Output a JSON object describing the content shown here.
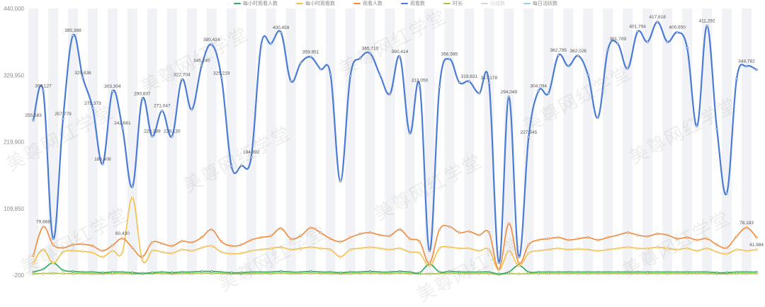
{
  "watermark_text": "美尊网红学堂",
  "legend": [
    {
      "name": "每小时观看人数",
      "color": "#2eaa5a",
      "muted": false
    },
    {
      "name": "每小时观看数",
      "color": "#f4c04a",
      "muted": false
    },
    {
      "name": "观看人数",
      "color": "#f08a3a",
      "muted": false
    },
    {
      "name": "观看数",
      "color": "#4a7bd6",
      "muted": false
    },
    {
      "name": "时长",
      "color": "#b0bf45",
      "muted": false
    },
    {
      "name": "分成数",
      "color": "#d7d7d7",
      "muted": true
    },
    {
      "name": "每日活跃数",
      "color": "#8fd0ef",
      "muted": false
    }
  ],
  "chart_data": {
    "type": "line",
    "title": "",
    "xlabel": "",
    "ylabel": "",
    "ylim": [
      -200,
      440000
    ],
    "y_ticks": [
      {
        "value": 440000,
        "label": "440,000"
      },
      {
        "value": 329950,
        "label": "329,950"
      },
      {
        "value": 219900,
        "label": "219,900"
      },
      {
        "value": 109850,
        "label": "109,850"
      },
      {
        "value": -200,
        "label": "-200"
      }
    ],
    "grid": "alternating vertical bands",
    "legend_position": "top-center",
    "series": [
      {
        "name": "观看数",
        "color": "#4a7bd6",
        "values": [
          255583,
          304127,
          60000,
          257779,
          395388,
          325838,
          275373,
          183408,
          303304,
          242661,
          145579,
          290837,
          229189,
          271047,
          229120,
          322704,
          273300,
          346240,
          380424,
          325219,
          180000,
          180519,
          194892,
          380000,
          382000,
          400459,
          320245,
          350000,
          359951,
          340000,
          330910,
          155000,
          328684,
          358000,
          365710,
          330000,
          299000,
          360414,
          234000,
          313050,
          40000,
          310570,
          356595,
          318000,
          319631,
          300000,
          317178,
          20000,
          294049,
          30000,
          227545,
          304094,
          300000,
          362795,
          345000,
          362026,
          330000,
          260000,
          372000,
          381709,
          341000,
          401794,
          385000,
          417818,
          385000,
          400650,
          375000,
          246000,
          411292,
          241000,
          135000,
          324000,
          344782,
          339000
        ]
      },
      {
        "name": "观看人数",
        "color": "#f08a3a",
        "values": [
          32000,
          79668,
          50000,
          45000,
          50000,
          51000,
          48000,
          40000,
          49000,
          60430,
          45000,
          30000,
          54000,
          52000,
          48000,
          56000,
          54000,
          62000,
          75000,
          55000,
          48000,
          50000,
          58000,
          62000,
          65000,
          77000,
          60000,
          65000,
          78000,
          70000,
          60000,
          55000,
          62000,
          68000,
          70000,
          66000,
          65000,
          75000,
          60000,
          55000,
          20000,
          75000,
          80000,
          70000,
          72000,
          66000,
          70000,
          10000,
          85000,
          20000,
          50000,
          58000,
          60000,
          62000,
          58000,
          60000,
          62000,
          58000,
          62000,
          66000,
          70000,
          66000,
          64000,
          68000,
          66000,
          60000,
          62000,
          58000,
          60000,
          50000,
          45000,
          64000,
          78183,
          62000
        ]
      },
      {
        "name": "每小时观看数",
        "color": "#f4c04a",
        "values": [
          20000,
          42000,
          20000,
          38000,
          40000,
          39000,
          37000,
          30000,
          40000,
          38000,
          128000,
          25000,
          40000,
          38000,
          36000,
          42000,
          40000,
          45000,
          48000,
          38000,
          35000,
          36000,
          40000,
          42000,
          44000,
          46000,
          42000,
          44000,
          46000,
          44000,
          42000,
          30000,
          42000,
          44000,
          46000,
          44000,
          42000,
          44000,
          38000,
          36000,
          15000,
          44000,
          46000,
          44000,
          44000,
          40000,
          42000,
          8000,
          40000,
          15000,
          36000,
          40000,
          42000,
          44000,
          42000,
          43000,
          42000,
          40000,
          42000,
          44000,
          46000,
          44000,
          44000,
          46000,
          44000,
          42000,
          44000,
          40000,
          44000,
          38000,
          35000,
          42000,
          40000,
          41984
        ]
      },
      {
        "name": "每小时观看人数",
        "color": "#2eaa5a",
        "values": [
          5000,
          10000,
          20000,
          8000,
          6000,
          5000,
          5000,
          4000,
          5000,
          5000,
          4000,
          3000,
          4000,
          5000,
          4000,
          5000,
          5000,
          6000,
          6000,
          5000,
          4000,
          4000,
          5000,
          5000,
          5000,
          6000,
          5000,
          5000,
          6000,
          5000,
          5000,
          4000,
          5000,
          5000,
          6000,
          5000,
          5000,
          6000,
          5000,
          4000,
          18000,
          5000,
          6000,
          5000,
          5000,
          5000,
          5000,
          2000,
          5000,
          16000,
          5000,
          5000,
          5000,
          5000,
          5000,
          5000,
          5000,
          5000,
          5000,
          5000,
          5000,
          5000,
          5000,
          5000,
          5000,
          5000,
          5000,
          5000,
          5000,
          4000,
          4000,
          5000,
          5000,
          5000
        ]
      },
      {
        "name": "时长",
        "color": "#b0bf45",
        "values": [
          2000,
          2500,
          3000,
          2500,
          2500,
          2500,
          2000,
          2000,
          2500,
          2500,
          2000,
          2000,
          2500,
          2500,
          2000,
          2500,
          2500,
          3000,
          3000,
          2500,
          2000,
          2000,
          2500,
          2500,
          2500,
          3000,
          2500,
          2500,
          3000,
          2500,
          2500,
          2000,
          2500,
          2500,
          3000,
          2500,
          2500,
          3000,
          2500,
          2000,
          2000,
          2500,
          3000,
          2500,
          2500,
          2500,
          2500,
          1000,
          2500,
          2000,
          2500,
          2500,
          2500,
          2500,
          2500,
          2500,
          2500,
          2500,
          2500,
          2500,
          2500,
          2500,
          2500,
          2500,
          2500,
          2500,
          2500,
          2500,
          2500,
          2000,
          2000,
          2500,
          2500,
          2500
        ]
      }
    ],
    "annotations": [
      {
        "series": "观看数",
        "index": 0,
        "label": "255,583"
      },
      {
        "series": "观看数",
        "index": 1,
        "label": "304,127"
      },
      {
        "series": "观看数",
        "index": 3,
        "label": "257,779"
      },
      {
        "series": "观看数",
        "index": 4,
        "label": "395,388"
      },
      {
        "series": "观看数",
        "index": 5,
        "label": "325,838"
      },
      {
        "series": "观看数",
        "index": 6,
        "label": "275,373"
      },
      {
        "series": "观看数",
        "index": 7,
        "label": "183,408"
      },
      {
        "series": "观看数",
        "index": 8,
        "label": "303,304"
      },
      {
        "series": "观看数",
        "index": 9,
        "label": "242,661"
      },
      {
        "series": "观看数",
        "index": 11,
        "label": "290,837"
      },
      {
        "series": "观看数",
        "index": 12,
        "label": "229,189"
      },
      {
        "series": "观看数",
        "index": 13,
        "label": "271,047"
      },
      {
        "series": "观看数",
        "index": 14,
        "label": "229,120"
      },
      {
        "series": "观看数",
        "index": 15,
        "label": "322,704"
      },
      {
        "series": "观看数",
        "index": 17,
        "label": "346,240"
      },
      {
        "series": "观看数",
        "index": 18,
        "label": "380,424"
      },
      {
        "series": "观看数",
        "index": 19,
        "label": "325,219"
      },
      {
        "series": "观看数",
        "index": 22,
        "label": "194,892"
      },
      {
        "series": "观看数",
        "index": 25,
        "label": "400,459"
      },
      {
        "series": "观看数",
        "index": 28,
        "label": "359,951"
      },
      {
        "series": "观看数",
        "index": 34,
        "label": "365,710"
      },
      {
        "series": "观看数",
        "index": 37,
        "label": "360,414"
      },
      {
        "series": "观看数",
        "index": 39,
        "label": "313,050"
      },
      {
        "series": "观看数",
        "index": 42,
        "label": "356,595"
      },
      {
        "series": "观看数",
        "index": 44,
        "label": "319,631"
      },
      {
        "series": "观看数",
        "index": 46,
        "label": "317,178"
      },
      {
        "series": "观看数",
        "index": 48,
        "label": "294,049"
      },
      {
        "series": "观看数",
        "index": 50,
        "label": "227,545"
      },
      {
        "series": "观看数",
        "index": 51,
        "label": "304,094"
      },
      {
        "series": "观看数",
        "index": 53,
        "label": "362,795"
      },
      {
        "series": "观看数",
        "index": 55,
        "label": "362,026"
      },
      {
        "series": "观看数",
        "index": 59,
        "label": "381,709"
      },
      {
        "series": "观看数",
        "index": 61,
        "label": "401,794"
      },
      {
        "series": "观看数",
        "index": 63,
        "label": "417,818"
      },
      {
        "series": "观看数",
        "index": 65,
        "label": "400,650"
      },
      {
        "series": "观看数",
        "index": 68,
        "label": "411,292"
      },
      {
        "series": "观看数",
        "index": 72,
        "label": "344,782"
      },
      {
        "series": "观看人数",
        "index": 1,
        "label": "79,668"
      },
      {
        "series": "观看人数",
        "index": 9,
        "label": "60,430"
      },
      {
        "series": "观看人数",
        "index": 72,
        "label": "78,183"
      },
      {
        "series": "每小时观看数",
        "index": 73,
        "label": "41,984"
      }
    ]
  }
}
